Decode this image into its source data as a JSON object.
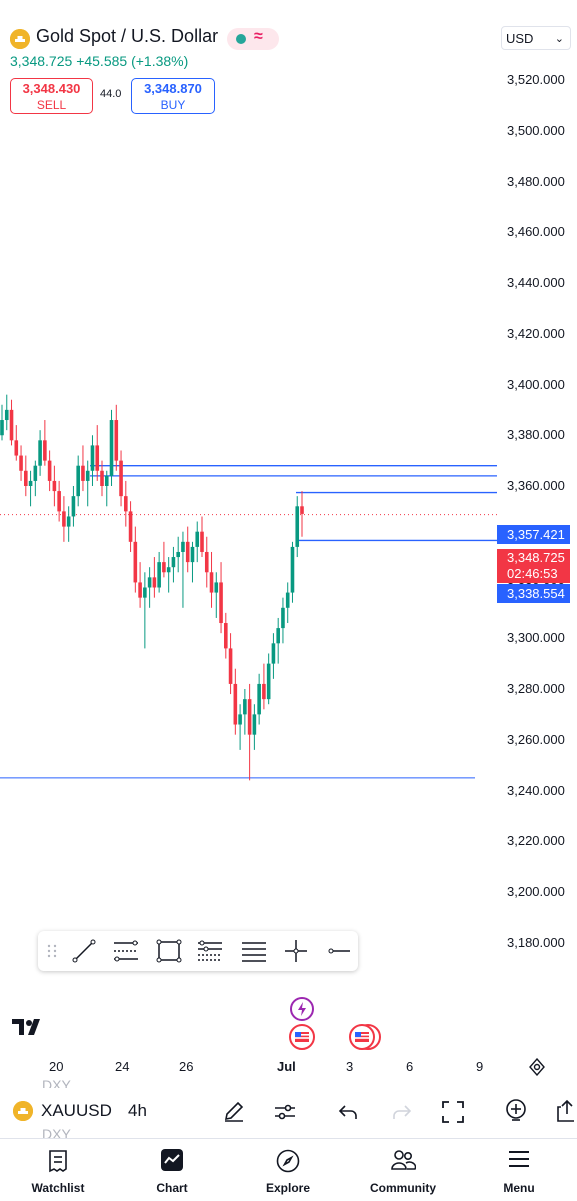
{
  "header": {
    "title": "Gold Spot / U.S. Dollar",
    "last_price": "3,348.725",
    "change": "+45.585 (+1.38%)",
    "currency": "USD",
    "market_status_colors": {
      "open_dot": "#26a69a",
      "wave": "#e91e63"
    }
  },
  "trade": {
    "sell_price": "3,348.430",
    "sell_label": "SELL",
    "spread": "44.0",
    "buy_price": "3,348.870",
    "buy_label": "BUY"
  },
  "price_axis": {
    "labels": [
      "3,520.000",
      "3,500.000",
      "3,480.000",
      "3,460.000",
      "3,440.000",
      "3,420.000",
      "3,400.000",
      "3,380.000",
      "3,360.000",
      "3,320.000",
      "3,300.000",
      "3,280.000",
      "3,260.000",
      "3,240.000",
      "3,220.000",
      "3,200.000",
      "3,180.000"
    ],
    "tag_high": "3,357.421",
    "tag_current": "3,348.725",
    "tag_countdown": "02:46:53",
    "tag_low": "3,338.554"
  },
  "time_axis": {
    "labels": [
      "20",
      "24",
      "26",
      "Jul",
      "3",
      "6",
      "9"
    ]
  },
  "drawing_tools": [
    "drag-handle",
    "trend-line",
    "fib-retracement",
    "rectangle",
    "pitchfork",
    "parallel-channel",
    "crosshair",
    "horizontal-ray"
  ],
  "bottom_toolbar": {
    "symbol": "XAUUSD",
    "interval": "4h",
    "ghost_symbol": "DXY"
  },
  "nav": [
    {
      "label": "Watchlist",
      "icon": "watchlist-icon"
    },
    {
      "label": "Chart",
      "icon": "chart-icon"
    },
    {
      "label": "Explore",
      "icon": "compass-icon"
    },
    {
      "label": "Community",
      "icon": "community-icon"
    },
    {
      "label": "Menu",
      "icon": "menu-icon"
    }
  ],
  "colors": {
    "up": "#089981",
    "down": "#f23645",
    "accent": "#2962ff",
    "gold": "#f0b429"
  },
  "chart_data": {
    "type": "candlestick",
    "symbol": "XAUUSD",
    "interval": "4h",
    "ylim": [
      3170,
      3530
    ],
    "x_ticks": [
      "20",
      "24",
      "26",
      "Jul",
      "3",
      "6",
      "9"
    ],
    "candles": [
      [
        3380,
        3392,
        3378,
        3386
      ],
      [
        3386,
        3396,
        3382,
        3390
      ],
      [
        3390,
        3394,
        3376,
        3378
      ],
      [
        3378,
        3384,
        3370,
        3372
      ],
      [
        3372,
        3376,
        3362,
        3366
      ],
      [
        3366,
        3372,
        3356,
        3360
      ],
      [
        3360,
        3366,
        3352,
        3362
      ],
      [
        3362,
        3370,
        3356,
        3368
      ],
      [
        3368,
        3382,
        3364,
        3378
      ],
      [
        3378,
        3386,
        3368,
        3370
      ],
      [
        3370,
        3374,
        3358,
        3362
      ],
      [
        3362,
        3368,
        3352,
        3358
      ],
      [
        3358,
        3362,
        3346,
        3350
      ],
      [
        3350,
        3356,
        3338,
        3344
      ],
      [
        3344,
        3352,
        3338,
        3348
      ],
      [
        3348,
        3360,
        3344,
        3356
      ],
      [
        3356,
        3372,
        3352,
        3368
      ],
      [
        3368,
        3376,
        3358,
        3362
      ],
      [
        3362,
        3370,
        3352,
        3366
      ],
      [
        3366,
        3380,
        3360,
        3376
      ],
      [
        3376,
        3384,
        3362,
        3366
      ],
      [
        3366,
        3370,
        3356,
        3360
      ],
      [
        3360,
        3366,
        3352,
        3364
      ],
      [
        3364,
        3390,
        3360,
        3386
      ],
      [
        3386,
        3392,
        3366,
        3370
      ],
      [
        3370,
        3374,
        3352,
        3356
      ],
      [
        3356,
        3362,
        3344,
        3350
      ],
      [
        3350,
        3354,
        3334,
        3338
      ],
      [
        3338,
        3344,
        3318,
        3322
      ],
      [
        3322,
        3330,
        3312,
        3316
      ],
      [
        3316,
        3326,
        3296,
        3320
      ],
      [
        3320,
        3328,
        3312,
        3324
      ],
      [
        3324,
        3332,
        3316,
        3320
      ],
      [
        3320,
        3334,
        3318,
        3330
      ],
      [
        3330,
        3338,
        3324,
        3326
      ],
      [
        3326,
        3332,
        3318,
        3328
      ],
      [
        3328,
        3336,
        3322,
        3332
      ],
      [
        3332,
        3340,
        3326,
        3334
      ],
      [
        3334,
        3342,
        3312,
        3338
      ],
      [
        3338,
        3344,
        3326,
        3330
      ],
      [
        3330,
        3338,
        3322,
        3336
      ],
      [
        3336,
        3346,
        3330,
        3342
      ],
      [
        3342,
        3348,
        3332,
        3334
      ],
      [
        3334,
        3340,
        3320,
        3326
      ],
      [
        3326,
        3334,
        3312,
        3318
      ],
      [
        3318,
        3326,
        3308,
        3322
      ],
      [
        3322,
        3330,
        3302,
        3306
      ],
      [
        3306,
        3310,
        3292,
        3296
      ],
      [
        3296,
        3302,
        3278,
        3282
      ],
      [
        3282,
        3288,
        3262,
        3266
      ],
      [
        3266,
        3274,
        3256,
        3270
      ],
      [
        3270,
        3280,
        3262,
        3276
      ],
      [
        3276,
        3282,
        3244,
        3262
      ],
      [
        3262,
        3274,
        3256,
        3270
      ],
      [
        3270,
        3286,
        3266,
        3282
      ],
      [
        3282,
        3290,
        3272,
        3276
      ],
      [
        3276,
        3294,
        3274,
        3290
      ],
      [
        3290,
        3302,
        3284,
        3298
      ],
      [
        3298,
        3308,
        3290,
        3304
      ],
      [
        3304,
        3316,
        3298,
        3312
      ],
      [
        3312,
        3322,
        3306,
        3318
      ],
      [
        3318,
        3338,
        3314,
        3336
      ],
      [
        3336,
        3356,
        3332,
        3352
      ],
      [
        3352,
        3358,
        3340,
        3349
      ]
    ],
    "horizontal_lines": [
      3368.0,
      3364.0,
      3357.421,
      3338.554,
      3245.0
    ],
    "current_price": 3348.725
  }
}
